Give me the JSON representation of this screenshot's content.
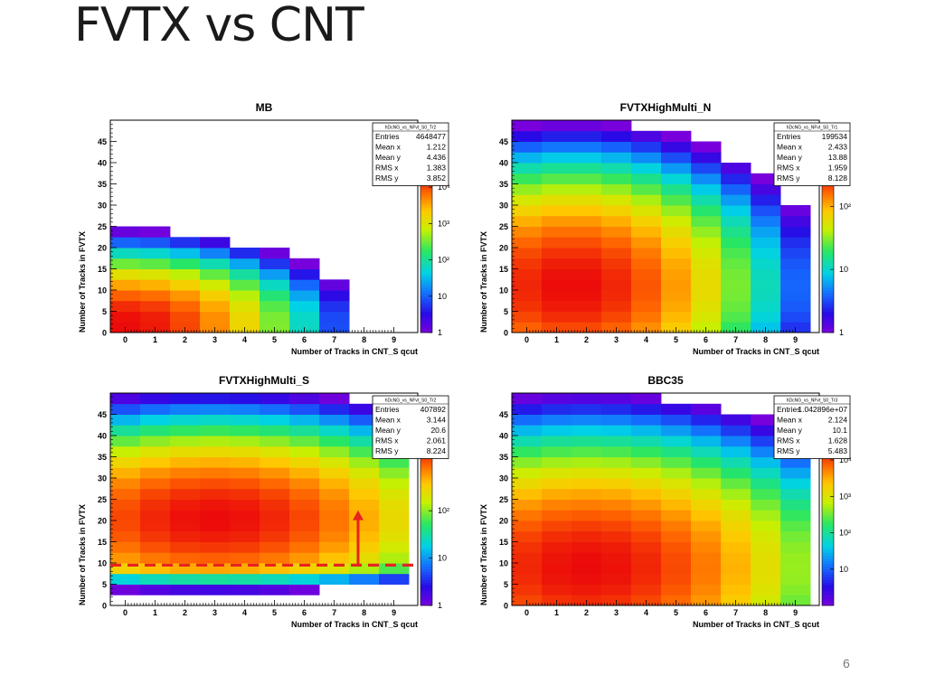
{
  "slide": {
    "title": "FVTX vs CNT",
    "page_number": "6"
  },
  "chart_data": [
    {
      "type": "heatmap",
      "title": "MB",
      "xlabel": "Number of Tracks in CNT_S qcut",
      "ylabel": "Number of Tracks in FVTX",
      "x_bins": [
        0,
        1,
        2,
        3,
        4,
        5,
        6,
        7,
        8,
        9
      ],
      "y_bin_width": 2.5,
      "xlim": [
        -0.5,
        9.8
      ],
      "ylim": [
        0,
        50
      ],
      "x_ticks": [
        "0",
        "1",
        "2",
        "3",
        "4",
        "5",
        "6",
        "7",
        "8",
        "9"
      ],
      "y_ticks": [
        "0",
        "5",
        "10",
        "15",
        "20",
        "25",
        "30",
        "35",
        "40",
        "45"
      ],
      "z_scale": "log",
      "z_range": [
        1,
        20000
      ],
      "z_tick_labels": [
        "1",
        "10",
        "10²",
        "10³",
        "10⁴"
      ],
      "z_tick_values": [
        1,
        10,
        100,
        1000,
        10000
      ],
      "peak": {
        "x": 0,
        "y": 2,
        "sx": 2.5,
        "sy": 7,
        "value": 20000
      },
      "cutoff_y": [
        41,
        46,
        47,
        45,
        43,
        43,
        38,
        36,
        33,
        31
      ],
      "cutoff_fade": 3,
      "stats": {
        "header": "hDcNG_vs_NFvt_S0_Tr2",
        "rows": [
          [
            "Entries",
            "4648477"
          ],
          [
            "Mean x",
            "1.212"
          ],
          [
            "Mean y",
            "4.436"
          ],
          [
            "RMS x",
            "1.383"
          ],
          [
            "RMS y",
            "3.852"
          ]
        ]
      }
    },
    {
      "type": "heatmap",
      "title": "FVTXHighMulti_N",
      "xlabel": "Number of Tracks in CNT_S qcut",
      "ylabel": "Number of Tracks in FVTX",
      "x_bins": [
        0,
        1,
        2,
        3,
        4,
        5,
        6,
        7,
        8,
        9
      ],
      "y_bin_width": 2.5,
      "xlim": [
        -0.5,
        9.8
      ],
      "ylim": [
        0,
        50
      ],
      "x_ticks": [
        "0",
        "1",
        "2",
        "3",
        "4",
        "5",
        "6",
        "7",
        "8",
        "9"
      ],
      "y_ticks": [
        "0",
        "5",
        "10",
        "15",
        "20",
        "25",
        "30",
        "35",
        "40",
        "45"
      ],
      "z_scale": "log",
      "z_range": [
        1,
        300
      ],
      "z_tick_labels": [
        "1",
        "10",
        "10²"
      ],
      "z_tick_values": [
        1,
        10,
        100
      ],
      "peak": {
        "x": 1.5,
        "y": 11,
        "sx": 3.6,
        "sy": 16,
        "value": 300
      },
      "stats": {
        "header": "hDcNG_vs_NFvt_S0_Tr1",
        "rows": [
          [
            "Entries",
            "199534"
          ],
          [
            "Mean x",
            "2.433"
          ],
          [
            "Mean y",
            "13.88"
          ],
          [
            "RMS x",
            "1.959"
          ],
          [
            "RMS y",
            "8.128"
          ]
        ]
      }
    },
    {
      "type": "heatmap",
      "title": "FVTXHighMulti_S",
      "xlabel": "Number of Tracks in CNT_S qcut",
      "ylabel": "Number of Tracks in FVTX",
      "x_bins": [
        0,
        1,
        2,
        3,
        4,
        5,
        6,
        7,
        8,
        9
      ],
      "y_bin_width": 2.5,
      "xlim": [
        -0.5,
        9.8
      ],
      "ylim": [
        0,
        50
      ],
      "x_ticks": [
        "0",
        "1",
        "2",
        "3",
        "4",
        "5",
        "6",
        "7",
        "8",
        "9"
      ],
      "y_ticks": [
        "0",
        "5",
        "10",
        "15",
        "20",
        "25",
        "30",
        "35",
        "40",
        "45"
      ],
      "z_scale": "log",
      "z_range": [
        1,
        2000
      ],
      "z_tick_labels": [
        "1",
        "10",
        "10²"
      ],
      "z_tick_values": [
        1,
        10,
        100
      ],
      "peak": {
        "x": 3,
        "y": 20.5,
        "sx": 4.2,
        "sy": 11,
        "value": 2000
      },
      "low_suppression_y": 9,
      "annotations": {
        "cut_line_y": 9.5,
        "arrow_x": 7.8,
        "arrow_from_y": 9.5,
        "arrow_to_y": 22,
        "color": "#e8231f"
      },
      "stats": {
        "header": "hDcNG_vs_NFvt_S0_Tr2",
        "rows": [
          [
            "Entries",
            "407892"
          ],
          [
            "Mean x",
            "3.144"
          ],
          [
            "Mean y",
            "20.6"
          ],
          [
            "RMS x",
            "2.061"
          ],
          [
            "RMS y",
            "8.224"
          ]
        ]
      }
    },
    {
      "type": "heatmap",
      "title": "BBC35",
      "xlabel": "Number of Tracks in CNT_S qcut",
      "ylabel": "Number of Tracks in FVTX",
      "x_bins": [
        0,
        1,
        2,
        3,
        4,
        5,
        6,
        7,
        8,
        9
      ],
      "y_bin_width": 2.5,
      "xlim": [
        -0.5,
        9.8
      ],
      "ylim": [
        0,
        50
      ],
      "x_ticks": [
        "0",
        "1",
        "2",
        "3",
        "4",
        "5",
        "6",
        "7",
        "8",
        "9"
      ],
      "y_ticks": [
        "0",
        "5",
        "10",
        "15",
        "20",
        "25",
        "30",
        "35",
        "40",
        "45"
      ],
      "z_scale": "log",
      "z_range": [
        1,
        20000
      ],
      "z_tick_labels": [
        "10",
        "10²",
        "10³",
        "10⁴"
      ],
      "z_tick_values": [
        10,
        100,
        1000,
        10000
      ],
      "peak": {
        "x": 2,
        "y": 9,
        "sx": 3.6,
        "sy": 13,
        "value": 20000
      },
      "stats": {
        "header": "hDcNG_vs_NFvt_S0_Tr3",
        "rows": [
          [
            "Entries",
            "1.042896e+07"
          ],
          [
            "Mean x",
            "2.124"
          ],
          [
            "Mean y",
            "10.1"
          ],
          [
            "RMS x",
            "1.628"
          ],
          [
            "RMS y",
            "5.483"
          ]
        ]
      }
    }
  ]
}
